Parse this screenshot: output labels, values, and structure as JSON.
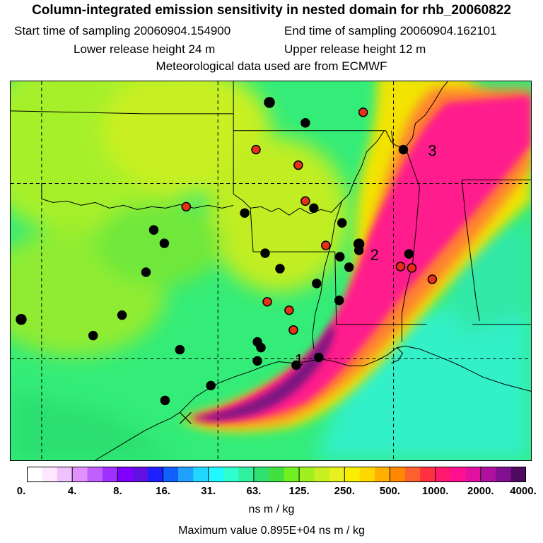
{
  "header": {
    "title": "Column-integrated emission sensitivity in nested domain for rhb_20060822",
    "start_label": "Start time of sampling 20060904.154900",
    "end_label": "End time of sampling 20060904.162101",
    "lower_label": "Lower release height   24 m",
    "upper_label": "Upper release height   12 m",
    "met_label": "Meteorological data used are from ECMWF"
  },
  "map": {
    "region_labels": [
      "1",
      "2",
      "3"
    ],
    "colors": {
      "background": "#35ef7a",
      "plume_outer": "#f7e400",
      "plume_mid": "#ff7a2a",
      "plume_core": "#ff1a8c",
      "plume_peak": "#7a1480",
      "sea": "#33ffcc",
      "marker_black": "#000000",
      "marker_red": "#e83018"
    }
  },
  "colorbar": {
    "tick_labels": [
      "0.",
      "4.",
      "8.",
      "16.",
      "31.",
      "63.",
      "125.",
      "250.",
      "500.",
      "1000.",
      "2000.",
      "4000."
    ],
    "units": "ns m / kg",
    "max_value": "Maximum value  0.895E+04 ns m / kg",
    "segment_colors": [
      "#ffffff",
      "#ffe8ff",
      "#f0c0ff",
      "#e090ff",
      "#c060ff",
      "#a030ff",
      "#8000ff",
      "#6010e0",
      "#2020ff",
      "#1060ff",
      "#20a0ff",
      "#20d8ff",
      "#20f8ff",
      "#30ffd0",
      "#30f0a0",
      "#30e070",
      "#40e040",
      "#70f020",
      "#a0f020",
      "#c8f020",
      "#e8f020",
      "#f8f000",
      "#ffd800",
      "#ffb000",
      "#ff8800",
      "#ff6030",
      "#ff3040",
      "#ff1a70",
      "#ff1090",
      "#e010a0",
      "#b010a0",
      "#801090",
      "#500a60"
    ]
  }
}
